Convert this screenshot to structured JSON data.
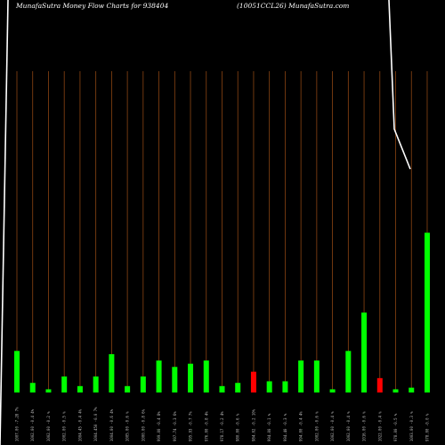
{
  "header": {
    "title_left": "MunafaSutra  Money Flow  Charts for 938404",
    "title_right": "(10051CCL26) MunafaSutra.com"
  },
  "chart_data": {
    "type": "bar",
    "title": "MunafaSutra  Money Flow  Charts for 938404",
    "subtitle": "(10051CCL26) MunafaSutra.com",
    "xlabel": "",
    "ylabel": "",
    "ylim": [
      0,
      100
    ],
    "grid": true,
    "bar_up_color": "#00ff00",
    "bar_down_color": "#ff0000",
    "grid_color": "#8b4513",
    "line_color": "#ffffff",
    "categories": [
      "1007.00 -7.28 7%",
      "1002.00 -0.4 4%",
      "1002.00 -0.2 %",
      "1002.00 -0.5 %",
      "1004.45 -0.4 4%",
      "1004.450 -0.0 7%",
      "1004.00 -0.6 4%",
      "1005.00 -0.6 %",
      "1000.00 -0.8 6%",
      "999.00 -0.4 8%",
      "997.74 -0.3 6%",
      "995.93 -0.7 7%",
      "976.00 -0.8 4%",
      "978.17 -0.2 4%",
      "980.00 -0.6 %",
      "984.02 -0.2 10%",
      "994.00 -0.1 %",
      "994.40 -0.3 %",
      "994.00 -0.4 4%",
      "1002.00 -0.6 %",
      "1002.00 -0.4 %",
      "1002.00 -0.4 %",
      "1016.00 -0.6 %",
      "1022.00 -0.4 %",
      "978.00 -0.5 %",
      "1003.00 -0.3 %",
      "978.00 -0.0 %"
    ],
    "values": [
      13,
      3,
      1,
      5,
      2,
      5,
      12,
      2,
      5,
      10,
      8,
      9,
      10,
      2,
      3,
      6.5,
      3.5,
      3.5,
      10,
      10,
      1,
      13,
      25,
      4.5,
      1,
      1.5,
      50
    ],
    "directions": [
      "up",
      "up",
      "up",
      "up",
      "up",
      "up",
      "up",
      "up",
      "up",
      "up",
      "up",
      "up",
      "up",
      "up",
      "up",
      "down",
      "up",
      "up",
      "up",
      "up",
      "up",
      "up",
      "up",
      "down",
      "up",
      "up",
      "up"
    ],
    "line": {
      "values": [
        null,
        null,
        null,
        null,
        null,
        null,
        null,
        null,
        null,
        null,
        null,
        null,
        null,
        null,
        null,
        null,
        null,
        null,
        null,
        null,
        null,
        null,
        null,
        null,
        null,
        null,
        null
      ],
      "note_visible": "white line at left edge and at top-right corner"
    }
  }
}
